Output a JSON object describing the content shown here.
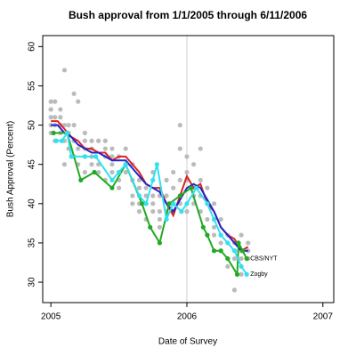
{
  "chart_data": {
    "type": "scatter-line",
    "title": "Bush approval from 1/1/2005 through 6/11/2006",
    "x_label": "Date of Survey",
    "y_label": "Bush Approval (Percent)",
    "xlim": [
      2004.94,
      2007.08
    ],
    "ylim": [
      27.4,
      61.4
    ],
    "xticks": [
      2005,
      2006,
      2007
    ],
    "yticks": [
      30,
      35,
      40,
      45,
      50,
      55,
      60
    ],
    "reference_line_x": 2006,
    "reference_line_color": "#d0d0d0",
    "series": [
      {
        "color": "#bbbbbb",
        "lines": false,
        "markers": true,
        "x": [
          2005.0,
          2005.0,
          2005.0,
          2005.0,
          2005.0,
          2005.0,
          2005.03,
          2005.03,
          2005.03,
          2005.03,
          2005.07,
          2005.07,
          2005.07,
          2005.07,
          2005.1,
          2005.1,
          2005.1,
          2005.1,
          2005.13,
          2005.13,
          2005.13,
          2005.17,
          2005.17,
          2005.17,
          2005.17,
          2005.2,
          2005.2,
          2005.2,
          2005.25,
          2005.25,
          2005.25,
          2005.25,
          2005.25,
          2005.3,
          2005.3,
          2005.3,
          2005.3,
          2005.35,
          2005.35,
          2005.35,
          2005.4,
          2005.4,
          2005.4,
          2005.4,
          2005.45,
          2005.45,
          2005.45,
          2005.45,
          2005.5,
          2005.5,
          2005.5,
          2005.5,
          2005.55,
          2005.55,
          2005.55,
          2005.6,
          2005.6,
          2005.6,
          2005.6,
          2005.65,
          2005.65,
          2005.65,
          2005.65,
          2005.7,
          2005.7,
          2005.7,
          2005.7,
          2005.75,
          2005.75,
          2005.75,
          2005.75,
          2005.8,
          2005.8,
          2005.8,
          2005.8,
          2005.85,
          2005.85,
          2005.85,
          2005.85,
          2005.9,
          2005.9,
          2005.9,
          2005.9,
          2005.95,
          2005.95,
          2005.95,
          2005.95,
          2006.0,
          2006.0,
          2006.0,
          2006.0,
          2006.05,
          2006.05,
          2006.05,
          2006.05,
          2006.1,
          2006.1,
          2006.1,
          2006.1,
          2006.15,
          2006.15,
          2006.15,
          2006.2,
          2006.2,
          2006.2,
          2006.2,
          2006.25,
          2006.25,
          2006.25,
          2006.25,
          2006.3,
          2006.3,
          2006.3,
          2006.3,
          2006.35,
          2006.35,
          2006.35,
          2006.35,
          2006.4,
          2006.4,
          2006.4,
          2006.4,
          2006.45,
          2006.45,
          2006.45
        ],
        "values": [
          52,
          51,
          50,
          49,
          53,
          52,
          50,
          53,
          51,
          48,
          49,
          51,
          50,
          52,
          57,
          45,
          50,
          48,
          50,
          49,
          47,
          54,
          46,
          48,
          50,
          53,
          47,
          45,
          49,
          48,
          47,
          46,
          44,
          46,
          47,
          45,
          48,
          48,
          45,
          44,
          48,
          47,
          46,
          43,
          47,
          44,
          46,
          45,
          46,
          44,
          42,
          43,
          47,
          45,
          44,
          45,
          43,
          41,
          40,
          42,
          40,
          39,
          43,
          42,
          41,
          40,
          38,
          44,
          39,
          40,
          41,
          38,
          37,
          39,
          41,
          41,
          39,
          38,
          43,
          40,
          42,
          39,
          44,
          50,
          47,
          43,
          40,
          46,
          44,
          43,
          39,
          45,
          42,
          40,
          41,
          47,
          43,
          41,
          39,
          42,
          40,
          38,
          40,
          37,
          38,
          36,
          38,
          36,
          35,
          34,
          36,
          35,
          33,
          32,
          33,
          34,
          35,
          29,
          36,
          34,
          33,
          31,
          35,
          33,
          34
        ]
      },
      {
        "color": "#dd2222",
        "lines": true,
        "markers": false,
        "x": [
          2005.0,
          2005.05,
          2005.1,
          2005.15,
          2005.2,
          2005.25,
          2005.3,
          2005.35,
          2005.4,
          2005.45,
          2005.5,
          2005.55,
          2005.6,
          2005.65,
          2005.7,
          2005.75,
          2005.8,
          2005.85,
          2005.9,
          2005.95,
          2006.0,
          2006.05,
          2006.1,
          2006.15,
          2006.2,
          2006.25,
          2006.3,
          2006.35,
          2006.4,
          2006.45
        ],
        "values": [
          50.5,
          50.5,
          49.5,
          48.5,
          48,
          47,
          47,
          46.5,
          46.5,
          45.5,
          46,
          46,
          45,
          44,
          42.5,
          42,
          42,
          40,
          38.5,
          41,
          43.5,
          42,
          42.5,
          40,
          39,
          37,
          36,
          35.5,
          34,
          34.5
        ]
      },
      {
        "color": "#2222cc",
        "lines": true,
        "markers": false,
        "x": [
          2005.0,
          2005.05,
          2005.1,
          2005.15,
          2005.2,
          2005.25,
          2005.3,
          2005.35,
          2005.4,
          2005.45,
          2005.5,
          2005.55,
          2005.6,
          2005.65,
          2005.7,
          2005.75,
          2005.8,
          2005.85,
          2005.9,
          2005.95,
          2006.0,
          2006.05,
          2006.1,
          2006.15,
          2006.2,
          2006.25,
          2006.3,
          2006.35,
          2006.4,
          2006.45
        ],
        "values": [
          50,
          50,
          49,
          48.5,
          47.5,
          47,
          46.5,
          46.5,
          46,
          45.5,
          45.5,
          45.5,
          44.5,
          43.5,
          42.5,
          42,
          41.5,
          40,
          39,
          40.5,
          42,
          42.5,
          42,
          40.5,
          39,
          37,
          36,
          35,
          34,
          34
        ]
      },
      {
        "name": "CBS/NYT",
        "color": "#22aa22",
        "lines": true,
        "markers": true,
        "x": [
          2005.02,
          2005.12,
          2005.22,
          2005.32,
          2005.45,
          2005.55,
          2005.67,
          2005.73,
          2005.8,
          2005.87,
          2005.95,
          2006.03,
          2006.12,
          2006.15,
          2006.2,
          2006.25,
          2006.3,
          2006.37,
          2006.38,
          2006.41,
          2006.44
        ],
        "values": [
          49,
          49,
          43,
          44,
          42,
          45,
          40,
          37,
          35,
          40,
          41,
          42,
          37,
          36,
          34,
          34,
          33,
          31,
          35,
          34,
          33
        ]
      },
      {
        "name": "Zogby",
        "color": "#33e0f0",
        "lines": true,
        "markers": true,
        "x": [
          2005.04,
          2005.08,
          2005.12,
          2005.15,
          2005.25,
          2005.33,
          2005.45,
          2005.5,
          2005.55,
          2005.65,
          2005.7,
          2005.75,
          2005.78,
          2005.85,
          2005.9,
          2005.96,
          2006.0,
          2006.07,
          2006.15,
          2006.2,
          2006.25,
          2006.3,
          2006.35,
          2006.4,
          2006.44
        ],
        "values": [
          48,
          48,
          49,
          46,
          46,
          46,
          43,
          44,
          45,
          41,
          40,
          43,
          45,
          38,
          40,
          39,
          40,
          42,
          40,
          38,
          36,
          35,
          34,
          32,
          31
        ]
      }
    ]
  }
}
